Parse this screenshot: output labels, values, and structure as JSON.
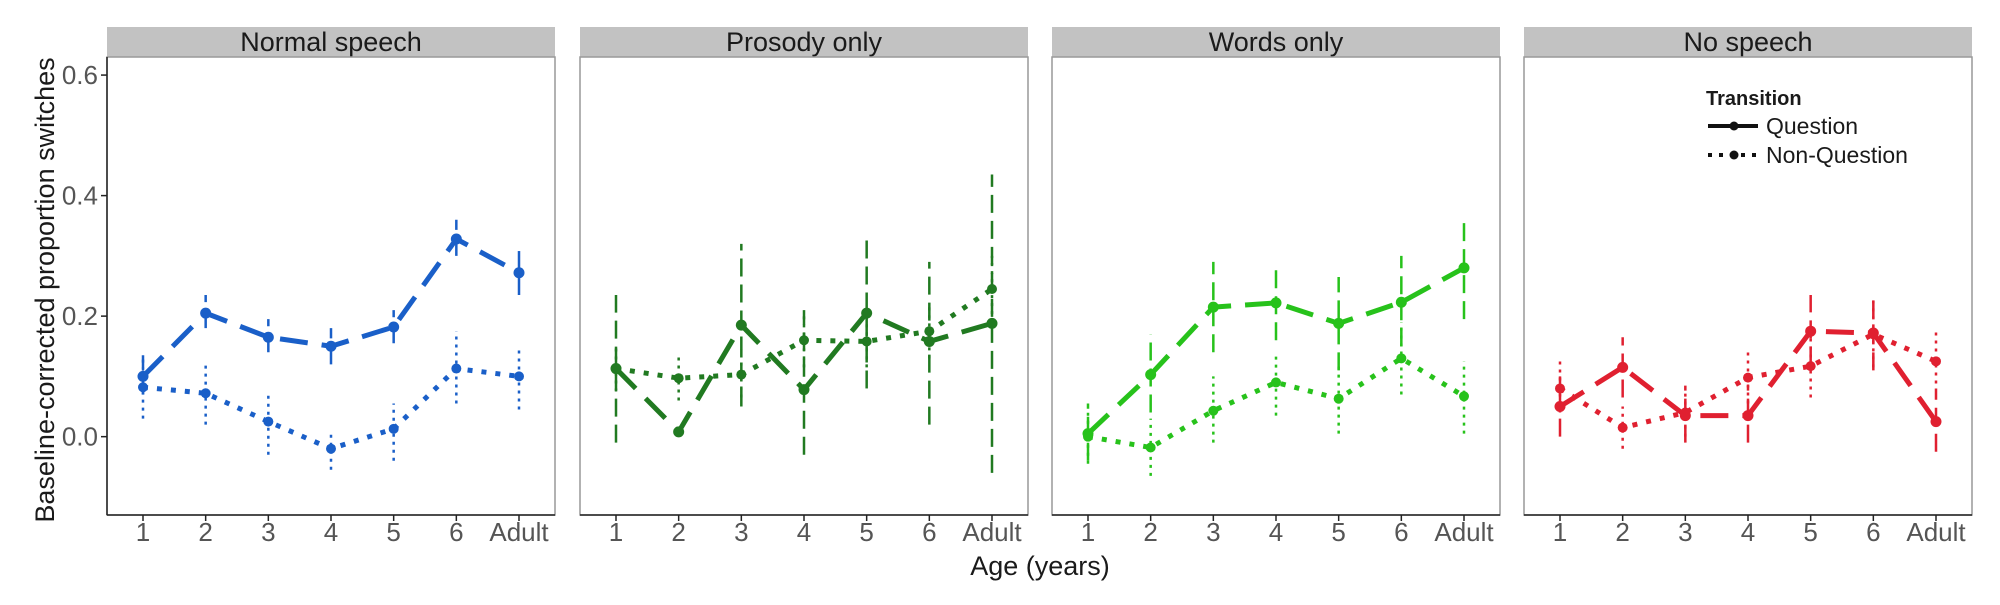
{
  "chart_data": {
    "type": "line",
    "ylabel": "Baseline-corrected proportion switches",
    "xlabel": "Age (years)",
    "categories": [
      "1",
      "2",
      "3",
      "4",
      "5",
      "6",
      "Adult"
    ],
    "ylim": [
      -0.13,
      0.63
    ],
    "yticks": [
      0.0,
      0.2,
      0.4,
      0.6
    ],
    "ytick_labels": [
      "0.0",
      "0.2",
      "0.4",
      "0.6"
    ],
    "grid": false,
    "legend": {
      "title": "Transition",
      "position": "top-right of last panel",
      "items": [
        {
          "label": "Question",
          "line": "dashed"
        },
        {
          "label": "Non-Question",
          "line": "dotted"
        }
      ]
    },
    "panels": [
      {
        "title": "Normal speech",
        "color": "#1a5fc8",
        "series": [
          {
            "name": "Question",
            "values": [
              0.1,
              0.205,
              0.165,
              0.15,
              0.182,
              0.328,
              0.272
            ],
            "err_low": [
              0.07,
              0.18,
              0.14,
              0.12,
              0.155,
              0.3,
              0.235
            ],
            "err_high": [
              0.135,
              0.235,
              0.195,
              0.18,
              0.21,
              0.36,
              0.31
            ]
          },
          {
            "name": "Non-Question",
            "values": [
              0.082,
              0.072,
              0.025,
              -0.02,
              0.013,
              0.113,
              0.1
            ],
            "err_low": [
              0.03,
              0.02,
              -0.03,
              -0.055,
              -0.04,
              0.055,
              0.045
            ],
            "err_high": [
              0.13,
              0.12,
              0.075,
              0.01,
              0.055,
              0.175,
              0.15
            ]
          }
        ]
      },
      {
        "title": "Prosody only",
        "color": "#217a21",
        "series": [
          {
            "name": "Question",
            "values": [
              0.113,
              0.008,
              0.185,
              0.078,
              0.205,
              0.158,
              0.188
            ],
            "err_low": [
              -0.01,
              0.0,
              0.05,
              -0.03,
              0.08,
              0.02,
              -0.06
            ],
            "err_high": [
              0.235,
              0.015,
              0.32,
              0.21,
              0.33,
              0.29,
              0.435
            ]
          },
          {
            "name": "Non-Question",
            "values": [
              0.113,
              0.097,
              0.103,
              0.16,
              0.158,
              0.175,
              0.245
            ],
            "err_low": [
              0.075,
              0.06,
              0.065,
              0.115,
              0.115,
              0.13,
              0.19
            ],
            "err_high": [
              0.15,
              0.135,
              0.145,
              0.2,
              0.2,
              0.22,
              0.3
            ]
          }
        ]
      },
      {
        "title": "Words only",
        "color": "#27c21b",
        "series": [
          {
            "name": "Question",
            "values": [
              0.005,
              0.103,
              0.215,
              0.222,
              0.188,
              0.223,
              0.28
            ],
            "err_low": [
              -0.04,
              0.04,
              0.14,
              0.16,
              0.11,
              0.15,
              0.195
            ],
            "err_high": [
              0.055,
              0.17,
              0.29,
              0.285,
              0.265,
              0.3,
              0.36
            ]
          },
          {
            "name": "Non-Question",
            "values": [
              0.0,
              -0.018,
              0.043,
              0.09,
              0.063,
              0.13,
              0.067
            ],
            "err_low": [
              -0.045,
              -0.065,
              -0.01,
              0.035,
              0.005,
              0.07,
              0.005
            ],
            "err_high": [
              0.045,
              0.03,
              0.1,
              0.14,
              0.12,
              0.19,
              0.125
            ]
          }
        ]
      },
      {
        "title": "No speech",
        "color": "#e02030",
        "series": [
          {
            "name": "Question",
            "values": [
              0.05,
              0.115,
              0.035,
              0.035,
              0.175,
              0.172,
              0.025
            ],
            "err_low": [
              0.0,
              0.065,
              -0.01,
              -0.01,
              0.12,
              0.11,
              -0.025
            ],
            "err_high": [
              0.1,
              0.165,
              0.08,
              0.085,
              0.235,
              0.235,
              0.075
            ]
          },
          {
            "name": "Non-Question",
            "values": [
              0.08,
              0.015,
              0.04,
              0.098,
              0.117,
              0.17,
              0.125
            ],
            "err_low": [
              0.04,
              -0.02,
              0.0,
              0.055,
              0.065,
              0.115,
              0.075
            ],
            "err_high": [
              0.125,
              0.05,
              0.085,
              0.14,
              0.165,
              0.225,
              0.175
            ]
          }
        ]
      }
    ]
  }
}
